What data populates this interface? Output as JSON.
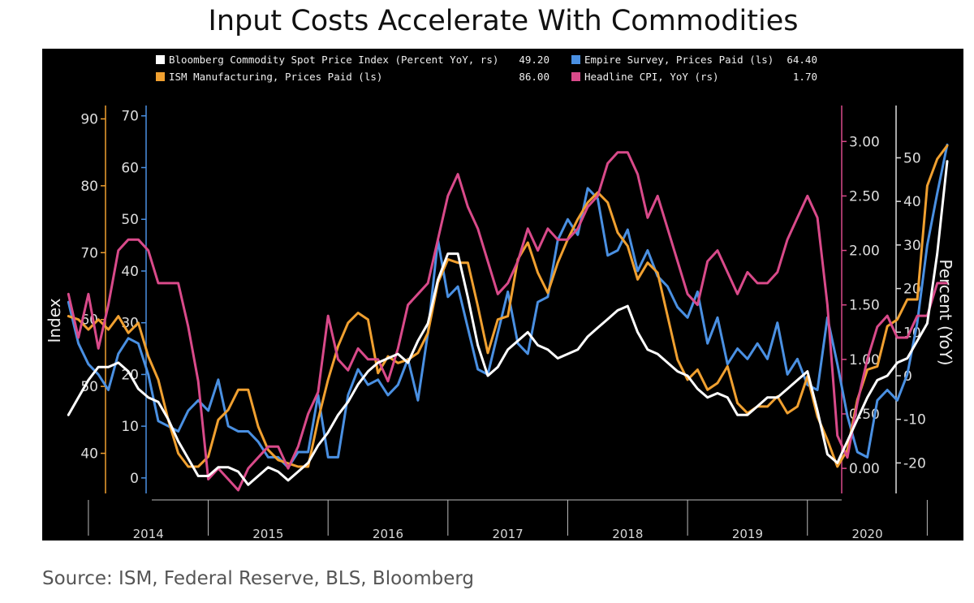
{
  "title": "Input Costs Accelerate With Commodities",
  "source": "Source: ISM, Federal Reserve, BLS, Bloomberg",
  "chart_data": {
    "type": "line",
    "x_axis": {
      "labels": [
        "2014",
        "2015",
        "2016",
        "2017",
        "2018",
        "2019",
        "2020"
      ],
      "range": [
        "2013-10",
        "2021-03"
      ]
    },
    "y_axes": {
      "ism_ls": {
        "label": "Index",
        "ticks": [
          "40",
          "50",
          "60",
          "70",
          "80",
          "90"
        ],
        "range": [
          34,
          92
        ],
        "color": "#f0a030"
      },
      "empire_ls": {
        "ticks": [
          "0",
          "10",
          "20",
          "30",
          "40",
          "50",
          "60",
          "70"
        ],
        "range": [
          -3,
          72
        ],
        "color": "#4a90e2"
      },
      "cpi_rs": {
        "ticks": [
          "0.00",
          "0.50",
          "1.00",
          "1.50",
          "2.00",
          "2.50",
          "3.00"
        ],
        "range": [
          -0.23,
          3.33
        ],
        "color": "#d94a8a"
      },
      "bcom_rs": {
        "label": "Percent (YoY)",
        "ticks": [
          "-20",
          "-10",
          "0",
          "10",
          "20",
          "30",
          "40",
          "50"
        ],
        "range": [
          -27,
          62
        ],
        "color": "#ffffff"
      }
    },
    "legend": {
      "placement": "top-left",
      "entries": [
        {
          "label": "Bloomberg Commodity Spot Price Index (Percent YoY, rs)",
          "last": "49.20",
          "color": "#ffffff"
        },
        {
          "label": "Empire Survey, Prices Paid (ls)",
          "last": "64.40",
          "color": "#4a90e2"
        },
        {
          "label": "ISM Manufacturing, Prices Paid (ls)",
          "last": "86.00",
          "color": "#f0a030"
        },
        {
          "label": "Headline CPI, YoY (rs)",
          "last": "1.70",
          "color": "#d94a8a"
        }
      ]
    },
    "series": [
      {
        "name": "Empire Survey, Prices Paid (ls)",
        "axis": "empire_ls",
        "color": "#4a90e2",
        "x": [
          "2013-11",
          "2013-12",
          "2014-01",
          "2014-02",
          "2014-03",
          "2014-04",
          "2014-05",
          "2014-06",
          "2014-07",
          "2014-08",
          "2014-09",
          "2014-10",
          "2014-11",
          "2014-12",
          "2015-01",
          "2015-02",
          "2015-03",
          "2015-04",
          "2015-05",
          "2015-06",
          "2015-07",
          "2015-08",
          "2015-09",
          "2015-10",
          "2015-11",
          "2015-12",
          "2016-01",
          "2016-02",
          "2016-03",
          "2016-04",
          "2016-05",
          "2016-06",
          "2016-07",
          "2016-08",
          "2016-09",
          "2016-10",
          "2016-11",
          "2016-12",
          "2017-01",
          "2017-02",
          "2017-03",
          "2017-04",
          "2017-05",
          "2017-06",
          "2017-07",
          "2017-08",
          "2017-09",
          "2017-10",
          "2017-11",
          "2017-12",
          "2018-01",
          "2018-02",
          "2018-03",
          "2018-04",
          "2018-05",
          "2018-06",
          "2018-07",
          "2018-08",
          "2018-09",
          "2018-10",
          "2018-11",
          "2018-12",
          "2019-01",
          "2019-02",
          "2019-03",
          "2019-04",
          "2019-05",
          "2019-06",
          "2019-07",
          "2019-08",
          "2019-09",
          "2019-10",
          "2019-11",
          "2019-12",
          "2020-01",
          "2020-02",
          "2020-03",
          "2020-04",
          "2020-05",
          "2020-06",
          "2020-07",
          "2020-08",
          "2020-09",
          "2020-10",
          "2020-11",
          "2020-12",
          "2021-01",
          "2021-02",
          "2021-03"
        ],
        "values": [
          34,
          26,
          22,
          20,
          17,
          24,
          27,
          26,
          20,
          11,
          10,
          9,
          13,
          15,
          13,
          19,
          10,
          9,
          9,
          7,
          4,
          4,
          2,
          5,
          5,
          16,
          4,
          4,
          16,
          21,
          18,
          19,
          16,
          18,
          23,
          15,
          28,
          46,
          35,
          37,
          29,
          21,
          20,
          28,
          36,
          26,
          24,
          34,
          35,
          46,
          50,
          47,
          56,
          54,
          43,
          44,
          48,
          40,
          44,
          39,
          37,
          33,
          31,
          36,
          26,
          31,
          22,
          25,
          23,
          26,
          23,
          30,
          20,
          23,
          18,
          17,
          31,
          22,
          12,
          5,
          4,
          15,
          17,
          15,
          20,
          30,
          45,
          55,
          64.4
        ]
      },
      {
        "name": "ISM Manufacturing, Prices Paid (ls)",
        "axis": "ism_ls",
        "color": "#f0a030",
        "x": [
          "2013-11",
          "2013-12",
          "2014-01",
          "2014-02",
          "2014-03",
          "2014-04",
          "2014-05",
          "2014-06",
          "2014-07",
          "2014-08",
          "2014-09",
          "2014-10",
          "2014-11",
          "2014-12",
          "2015-01",
          "2015-02",
          "2015-03",
          "2015-04",
          "2015-05",
          "2015-06",
          "2015-07",
          "2015-08",
          "2015-09",
          "2015-10",
          "2015-11",
          "2015-12",
          "2016-01",
          "2016-02",
          "2016-03",
          "2016-04",
          "2016-05",
          "2016-06",
          "2016-07",
          "2016-08",
          "2016-09",
          "2016-10",
          "2016-11",
          "2016-12",
          "2017-01",
          "2017-02",
          "2017-03",
          "2017-04",
          "2017-05",
          "2017-06",
          "2017-07",
          "2017-08",
          "2017-09",
          "2017-10",
          "2017-11",
          "2017-12",
          "2018-01",
          "2018-02",
          "2018-03",
          "2018-04",
          "2018-05",
          "2018-06",
          "2018-07",
          "2018-08",
          "2018-09",
          "2018-10",
          "2018-11",
          "2018-12",
          "2019-01",
          "2019-02",
          "2019-03",
          "2019-04",
          "2019-05",
          "2019-06",
          "2019-07",
          "2019-08",
          "2019-09",
          "2019-10",
          "2019-11",
          "2019-12",
          "2020-01",
          "2020-02",
          "2020-03",
          "2020-04",
          "2020-05",
          "2020-06",
          "2020-07",
          "2020-08",
          "2020-09",
          "2020-10",
          "2020-11",
          "2020-12",
          "2021-01",
          "2021-02",
          "2021-03"
        ],
        "values": [
          60.5,
          60,
          58.5,
          60,
          58.5,
          60.5,
          58,
          59.5,
          54.5,
          51,
          45,
          40,
          38,
          38,
          39.5,
          45,
          46.5,
          49.5,
          49.5,
          44,
          40.5,
          39,
          38.5,
          38,
          38,
          45,
          51,
          56,
          59.5,
          61,
          60,
          52,
          54.5,
          53.5,
          54,
          55,
          58,
          65.5,
          69,
          68.5,
          68.5,
          62,
          55,
          60,
          60.5,
          69,
          71.5,
          67,
          64,
          68.5,
          72,
          75,
          77.5,
          79,
          77.5,
          73,
          71,
          66,
          68.5,
          67,
          60.5,
          54,
          51,
          52.5,
          49.5,
          50.5,
          53,
          47.5,
          46,
          47,
          47,
          48.5,
          46,
          47,
          51.5,
          45.5,
          42,
          38,
          40.5,
          48,
          52.5,
          53,
          59,
          60,
          63,
          63,
          80,
          84,
          86
        ]
      },
      {
        "name": "Headline CPI, YoY (rs)",
        "axis": "cpi_rs",
        "color": "#d94a8a",
        "x": [
          "2013-11",
          "2013-12",
          "2014-01",
          "2014-02",
          "2014-03",
          "2014-04",
          "2014-05",
          "2014-06",
          "2014-07",
          "2014-08",
          "2014-09",
          "2014-10",
          "2014-11",
          "2014-12",
          "2015-01",
          "2015-02",
          "2015-03",
          "2015-04",
          "2015-05",
          "2015-06",
          "2015-07",
          "2015-08",
          "2015-09",
          "2015-10",
          "2015-11",
          "2015-12",
          "2016-01",
          "2016-02",
          "2016-03",
          "2016-04",
          "2016-05",
          "2016-06",
          "2016-07",
          "2016-08",
          "2016-09",
          "2016-10",
          "2016-11",
          "2016-12",
          "2017-01",
          "2017-02",
          "2017-03",
          "2017-04",
          "2017-05",
          "2017-06",
          "2017-07",
          "2017-08",
          "2017-09",
          "2017-10",
          "2017-11",
          "2017-12",
          "2018-01",
          "2018-02",
          "2018-03",
          "2018-04",
          "2018-05",
          "2018-06",
          "2018-07",
          "2018-08",
          "2018-09",
          "2018-10",
          "2018-11",
          "2018-12",
          "2019-01",
          "2019-02",
          "2019-03",
          "2019-04",
          "2019-05",
          "2019-06",
          "2019-07",
          "2019-08",
          "2019-09",
          "2019-10",
          "2019-11",
          "2019-12",
          "2020-01",
          "2020-02",
          "2020-03",
          "2020-04",
          "2020-05",
          "2020-06",
          "2020-07",
          "2020-08",
          "2020-09",
          "2020-10",
          "2020-11",
          "2020-12",
          "2021-01",
          "2021-02",
          "2021-03"
        ],
        "values": [
          1.6,
          1.2,
          1.6,
          1.1,
          1.5,
          2.0,
          2.1,
          2.1,
          2.0,
          1.7,
          1.7,
          1.7,
          1.3,
          0.8,
          -0.1,
          0.0,
          -0.1,
          -0.2,
          0.0,
          0.1,
          0.2,
          0.2,
          0.0,
          0.2,
          0.5,
          0.7,
          1.4,
          1.0,
          0.9,
          1.1,
          1.0,
          1.0,
          0.8,
          1.1,
          1.5,
          1.6,
          1.7,
          2.1,
          2.5,
          2.7,
          2.4,
          2.2,
          1.9,
          1.6,
          1.7,
          1.9,
          2.2,
          2.0,
          2.2,
          2.1,
          2.1,
          2.2,
          2.4,
          2.5,
          2.8,
          2.9,
          2.9,
          2.7,
          2.3,
          2.5,
          2.2,
          1.9,
          1.6,
          1.5,
          1.9,
          2.0,
          1.8,
          1.6,
          1.8,
          1.7,
          1.7,
          1.8,
          2.1,
          2.3,
          2.5,
          2.3,
          1.5,
          0.3,
          0.1,
          0.6,
          1.0,
          1.3,
          1.4,
          1.2,
          1.2,
          1.4,
          1.4,
          1.7,
          1.7
        ]
      },
      {
        "name": "Bloomberg Commodity Spot Price Index (Percent YoY, rs)",
        "axis": "bcom_rs",
        "color": "#ffffff",
        "x": [
          "2013-11",
          "2013-12",
          "2014-01",
          "2014-02",
          "2014-03",
          "2014-04",
          "2014-05",
          "2014-06",
          "2014-07",
          "2014-08",
          "2014-09",
          "2014-10",
          "2014-11",
          "2014-12",
          "2015-01",
          "2015-02",
          "2015-03",
          "2015-04",
          "2015-05",
          "2015-06",
          "2015-07",
          "2015-08",
          "2015-09",
          "2015-10",
          "2015-11",
          "2015-12",
          "2016-01",
          "2016-02",
          "2016-03",
          "2016-04",
          "2016-05",
          "2016-06",
          "2016-07",
          "2016-08",
          "2016-09",
          "2016-10",
          "2016-11",
          "2016-12",
          "2017-01",
          "2017-02",
          "2017-03",
          "2017-04",
          "2017-05",
          "2017-06",
          "2017-07",
          "2017-08",
          "2017-09",
          "2017-10",
          "2017-11",
          "2017-12",
          "2018-01",
          "2018-02",
          "2018-03",
          "2018-04",
          "2018-05",
          "2018-06",
          "2018-07",
          "2018-08",
          "2018-09",
          "2018-10",
          "2018-11",
          "2018-12",
          "2019-01",
          "2019-02",
          "2019-03",
          "2019-04",
          "2019-05",
          "2019-06",
          "2019-07",
          "2019-08",
          "2019-09",
          "2019-10",
          "2019-11",
          "2019-12",
          "2020-01",
          "2020-02",
          "2020-03",
          "2020-04",
          "2020-05",
          "2020-06",
          "2020-07",
          "2020-08",
          "2020-09",
          "2020-10",
          "2020-11",
          "2020-12",
          "2021-01",
          "2021-02",
          "2021-03"
        ],
        "values": [
          -9,
          -5,
          -1,
          2,
          2,
          3,
          1,
          -3,
          -5,
          -6,
          -10,
          -15,
          -19,
          -23,
          -23,
          -21,
          -21,
          -22,
          -25,
          -23,
          -21,
          -22,
          -24,
          -22,
          -20,
          -16,
          -13,
          -9,
          -6,
          -2,
          1,
          3,
          4,
          5,
          3,
          8,
          12,
          22,
          28,
          28,
          18,
          7,
          0,
          2,
          6,
          8,
          10,
          7,
          6,
          4,
          5,
          6,
          9,
          11,
          13,
          15,
          16,
          10,
          6,
          5,
          3,
          1,
          0,
          -3,
          -5,
          -4,
          -5,
          -9,
          -9,
          -7,
          -5,
          -5,
          -3,
          -1,
          1,
          -8,
          -18,
          -20,
          -15,
          -10,
          -5,
          -1,
          0,
          3,
          4,
          8,
          12,
          28,
          49.2
        ]
      }
    ]
  }
}
